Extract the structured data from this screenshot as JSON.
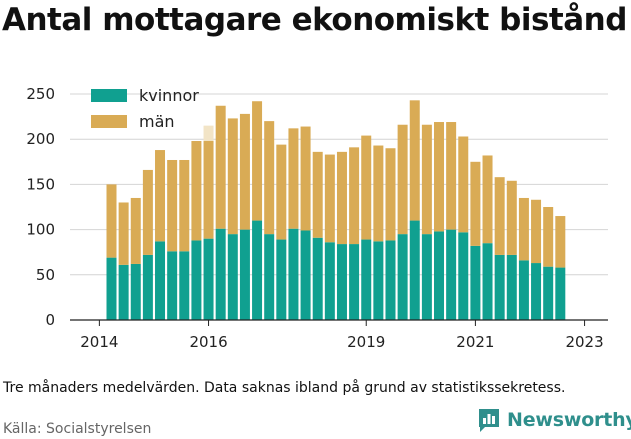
{
  "title": "Antal mottagare ekonomiskt bistånd",
  "note": "Tre månaders medelvärden. Data saknas ibland på grund av statistikssekretess.",
  "source": "Källa: Socialstyrelsen",
  "brand": {
    "name": "Newsworthy",
    "icon": "bar-chart-logo-icon",
    "color": "#2f8f8c"
  },
  "chart_data": {
    "type": "bar",
    "stacked": true,
    "ylim": [
      0,
      250
    ],
    "yticks": [
      0,
      50,
      100,
      150,
      200,
      250
    ],
    "xticks": [
      {
        "label": "2014",
        "index": -1
      },
      {
        "label": "2016",
        "index": 8
      },
      {
        "label": "2019",
        "index": 21
      },
      {
        "label": "2021",
        "index": 30
      },
      {
        "label": "2023",
        "index": 39
      }
    ],
    "grid": true,
    "legend_position": "top-left",
    "series": [
      {
        "name": "kvinnor",
        "color": "#10a090",
        "values": [
          69,
          61,
          62,
          72,
          87,
          76,
          76,
          88,
          90,
          101,
          95,
          100,
          110,
          95,
          89,
          101,
          99,
          91,
          86,
          84,
          84,
          89,
          87,
          88,
          95,
          110,
          95,
          98,
          100,
          97,
          82,
          85,
          72,
          72,
          66,
          63,
          59,
          58
        ]
      },
      {
        "name": "män",
        "color": "#d9ab55",
        "values": [
          81,
          69,
          73,
          94,
          101,
          101,
          101,
          110,
          108,
          136,
          128,
          128,
          132,
          125,
          105,
          111,
          115,
          95,
          97,
          102,
          107,
          115,
          106,
          102,
          121,
          133,
          121,
          121,
          119,
          106,
          93,
          97,
          86,
          82,
          69,
          70,
          66,
          57
        ]
      }
    ],
    "partial": [
      null,
      null,
      null,
      null,
      null,
      null,
      null,
      null,
      17,
      null,
      null,
      null,
      null,
      null,
      null,
      null,
      null,
      null,
      null,
      null,
      null,
      null,
      null,
      null,
      null,
      null,
      null,
      null,
      null,
      null,
      null,
      null,
      null,
      null,
      null,
      null,
      null,
      null
    ],
    "partial_color": "#f2e4c6"
  }
}
